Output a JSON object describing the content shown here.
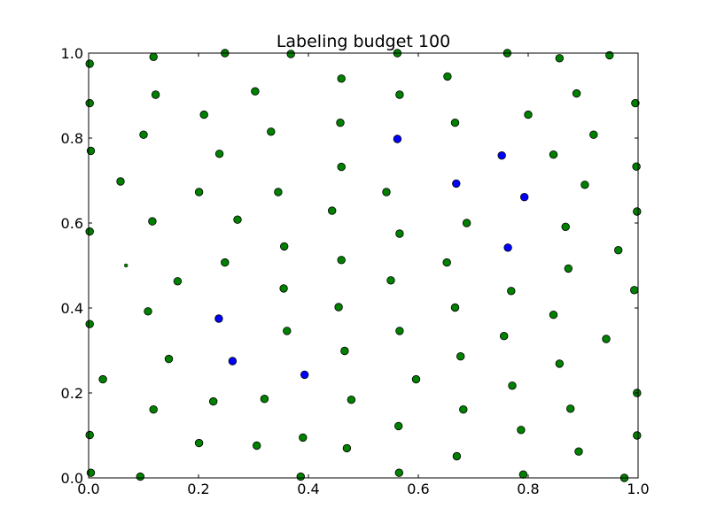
{
  "chart_data": {
    "type": "scatter",
    "title": "Labeling budget 100",
    "xlabel": "",
    "ylabel": "",
    "xlim": [
      0.0,
      1.0
    ],
    "ylim": [
      0.0,
      1.0
    ],
    "x_ticks": [
      "0.0",
      "0.2",
      "0.4",
      "0.6",
      "0.8",
      "1.0"
    ],
    "y_ticks": [
      "0.0",
      "0.2",
      "0.4",
      "0.6",
      "0.8",
      "1.0"
    ],
    "grid": false,
    "legend": "none",
    "colors": {
      "green": "#008000",
      "blue": "#0000ff",
      "edge": "#000000"
    },
    "series": [
      {
        "color": "#008000",
        "points": [
          [
            0.002,
            0.975
          ],
          [
            0.118,
            0.991
          ],
          [
            0.248,
            1.0
          ],
          [
            0.368,
            0.998
          ],
          [
            0.562,
            1.0
          ],
          [
            0.762,
            1.0
          ],
          [
            0.857,
            0.988
          ],
          [
            0.948,
            0.995
          ],
          [
            0.002,
            0.882
          ],
          [
            0.122,
            0.902
          ],
          [
            0.303,
            0.91
          ],
          [
            0.46,
            0.94
          ],
          [
            0.566,
            0.902
          ],
          [
            0.653,
            0.945
          ],
          [
            0.888,
            0.905
          ],
          [
            0.995,
            0.882
          ],
          [
            0.21,
            0.855
          ],
          [
            0.332,
            0.815
          ],
          [
            0.458,
            0.836
          ],
          [
            0.667,
            0.836
          ],
          [
            0.8,
            0.855
          ],
          [
            0.919,
            0.808
          ],
          [
            0.1,
            0.808
          ],
          [
            0.004,
            0.77
          ],
          [
            0.238,
            0.763
          ],
          [
            0.46,
            0.732
          ],
          [
            0.846,
            0.761
          ],
          [
            0.997,
            0.733
          ],
          [
            0.058,
            0.698
          ],
          [
            0.201,
            0.673
          ],
          [
            0.345,
            0.673
          ],
          [
            0.542,
            0.673
          ],
          [
            0.903,
            0.69
          ],
          [
            0.116,
            0.604
          ],
          [
            0.271,
            0.608
          ],
          [
            0.443,
            0.629
          ],
          [
            0.688,
            0.6
          ],
          [
            0.868,
            0.591
          ],
          [
            0.998,
            0.627
          ],
          [
            0.002,
            0.58
          ],
          [
            0.356,
            0.545
          ],
          [
            0.566,
            0.575
          ],
          [
            0.964,
            0.536
          ],
          [
            0.248,
            0.507
          ],
          [
            0.46,
            0.513
          ],
          [
            0.652,
            0.507
          ],
          [
            0.873,
            0.493
          ],
          [
            0.162,
            0.463
          ],
          [
            0.355,
            0.446
          ],
          [
            0.55,
            0.465
          ],
          [
            0.769,
            0.44
          ],
          [
            0.993,
            0.442
          ],
          [
            0.108,
            0.392
          ],
          [
            0.455,
            0.402
          ],
          [
            0.667,
            0.401
          ],
          [
            0.846,
            0.384
          ],
          [
            0.002,
            0.362
          ],
          [
            0.361,
            0.346
          ],
          [
            0.566,
            0.346
          ],
          [
            0.756,
            0.334
          ],
          [
            0.942,
            0.327
          ],
          [
            0.146,
            0.28
          ],
          [
            0.466,
            0.299
          ],
          [
            0.677,
            0.286
          ],
          [
            0.857,
            0.269
          ],
          [
            0.026,
            0.232
          ],
          [
            0.596,
            0.232
          ],
          [
            0.771,
            0.217
          ],
          [
            0.998,
            0.2
          ],
          [
            0.118,
            0.161
          ],
          [
            0.227,
            0.18
          ],
          [
            0.32,
            0.186
          ],
          [
            0.478,
            0.184
          ],
          [
            0.682,
            0.161
          ],
          [
            0.877,
            0.163
          ],
          [
            0.002,
            0.101
          ],
          [
            0.39,
            0.095
          ],
          [
            0.564,
            0.122
          ],
          [
            0.787,
            0.113
          ],
          [
            0.998,
            0.1
          ],
          [
            0.201,
            0.082
          ],
          [
            0.306,
            0.076
          ],
          [
            0.47,
            0.07
          ],
          [
            0.67,
            0.051
          ],
          [
            0.892,
            0.062
          ],
          [
            0.004,
            0.012
          ],
          [
            0.094,
            0.003
          ],
          [
            0.386,
            0.003
          ],
          [
            0.565,
            0.012
          ],
          [
            0.791,
            0.008
          ],
          [
            0.975,
            0.0
          ]
        ]
      },
      {
        "color": "#0000ff",
        "points": [
          [
            0.562,
            0.798
          ],
          [
            0.752,
            0.759
          ],
          [
            0.669,
            0.693
          ],
          [
            0.793,
            0.661
          ],
          [
            0.763,
            0.542
          ],
          [
            0.237,
            0.375
          ],
          [
            0.262,
            0.275
          ],
          [
            0.393,
            0.243
          ]
        ]
      },
      {
        "color": "#008000",
        "marker": "small",
        "points": [
          [
            0.068,
            0.5
          ]
        ]
      }
    ]
  }
}
